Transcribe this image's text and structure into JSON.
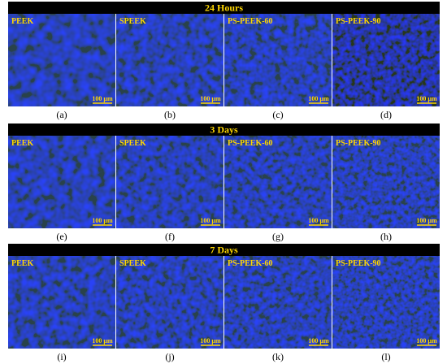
{
  "rows": [
    {
      "title": "24 Hours",
      "panels": [
        {
          "label": "PEEK",
          "scale": "100 µm",
          "caption": "(a)"
        },
        {
          "label": "SPEEK",
          "scale": "100 µm",
          "caption": "(b)"
        },
        {
          "label": "PS-PEEK-60",
          "scale": "100 µm",
          "caption": "(c)"
        },
        {
          "label": "PS-PEEK-90",
          "scale": "100 µm",
          "caption": "(d)"
        }
      ]
    },
    {
      "title": "3 Days",
      "panels": [
        {
          "label": "PEEK",
          "scale": "100 µm",
          "caption": "(e)"
        },
        {
          "label": "SPEEK",
          "scale": "100 µm",
          "caption": "(f)"
        },
        {
          "label": "PS-PEEK-60",
          "scale": "100 µm",
          "caption": "(g)"
        },
        {
          "label": "PS-PEEK-90",
          "scale": "100 µm",
          "caption": "(h)"
        }
      ]
    },
    {
      "title": "7 Days",
      "panels": [
        {
          "label": "PEEK",
          "scale": "100 µm",
          "caption": "(i)"
        },
        {
          "label": "SPEEK",
          "scale": "100 µm",
          "caption": "(j)"
        },
        {
          "label": "PS-PEEK-60",
          "scale": "100 µm",
          "caption": "(k)"
        },
        {
          "label": "PS-PEEK-90",
          "scale": "100 µm",
          "caption": "(l)"
        }
      ]
    }
  ]
}
